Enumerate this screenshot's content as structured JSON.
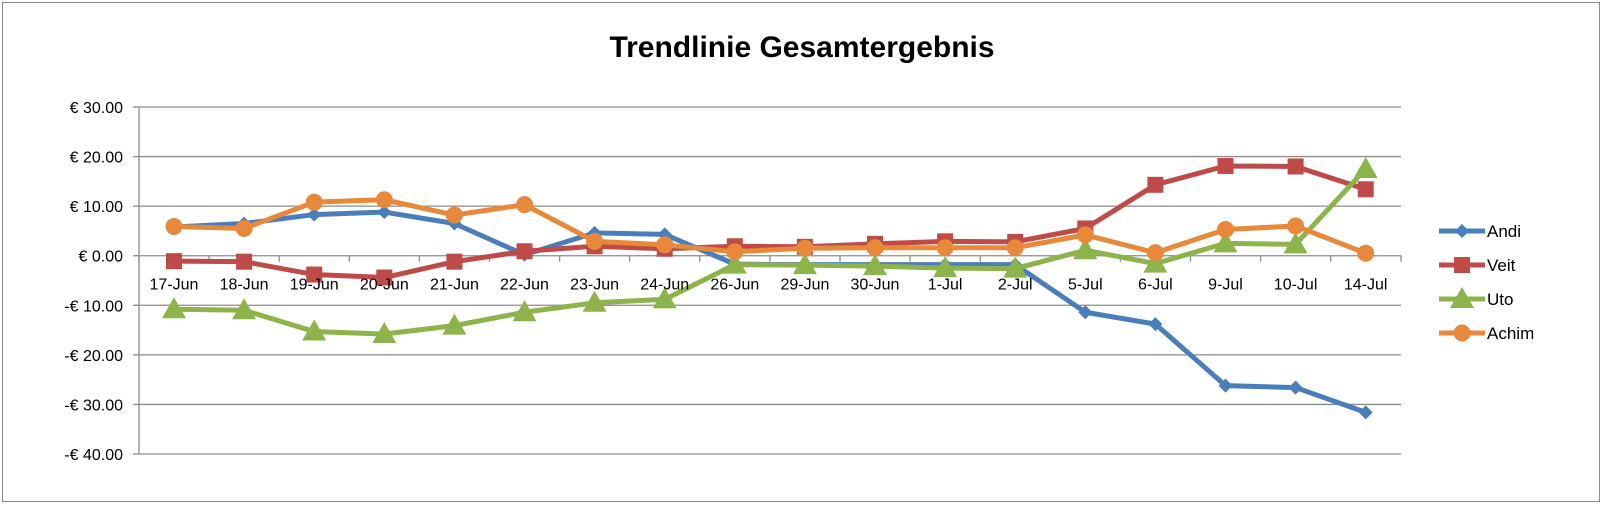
{
  "chart_data": {
    "type": "line",
    "title": "Trendlinie Gesamtergebnis",
    "xlabel": "",
    "ylabel": "",
    "ylim": [
      -40,
      30
    ],
    "y_ticks": [
      30,
      20,
      10,
      0,
      -10,
      -20,
      -30,
      -40
    ],
    "y_tick_labels": [
      "€ 30.00",
      "€ 20.00",
      "€ 10.00",
      "€ 0.00",
      "-€ 10.00",
      "-€ 20.00",
      "-€ 30.00",
      "-€ 40.00"
    ],
    "categories": [
      "17-Jun",
      "18-Jun",
      "19-Jun",
      "20-Jun",
      "21-Jun",
      "22-Jun",
      "23-Jun",
      "24-Jun",
      "26-Jun",
      "29-Jun",
      "30-Jun",
      "1-Jul",
      "2-Jul",
      "5-Jul",
      "6-Jul",
      "9-Jul",
      "10-Jul",
      "14-Jul"
    ],
    "grid": true,
    "legend_position": "right",
    "series": [
      {
        "name": "Andi",
        "color": "#4a7ebb",
        "marker": "diamond",
        "values": [
          5.8,
          6.5,
          8.3,
          8.8,
          6.5,
          0.2,
          4.6,
          4.3,
          -1.7,
          -1.8,
          -1.8,
          -1.8,
          -1.8,
          -11.4,
          -13.8,
          -26.2,
          -26.6,
          -31.6
        ]
      },
      {
        "name": "Veit",
        "color": "#be4b48",
        "marker": "square",
        "values": [
          -1.1,
          -1.2,
          -3.8,
          -4.4,
          -1.2,
          0.9,
          1.9,
          1.4,
          1.9,
          1.8,
          2.4,
          2.9,
          2.8,
          5.5,
          14.3,
          18.1,
          18.0,
          13.4
        ]
      },
      {
        "name": "Uto",
        "color": "#8cb44b",
        "marker": "triangle",
        "values": [
          -10.8,
          -11.0,
          -15.3,
          -15.8,
          -14.1,
          -11.4,
          -9.5,
          -8.8,
          -1.8,
          -1.9,
          -2.1,
          -2.5,
          -2.6,
          1.1,
          -1.6,
          2.5,
          2.3,
          17.5
        ]
      },
      {
        "name": "Achim",
        "color": "#e8883a",
        "marker": "circle",
        "values": [
          5.9,
          5.5,
          10.8,
          11.3,
          8.2,
          10.3,
          2.9,
          2.2,
          0.8,
          1.5,
          1.6,
          1.6,
          1.6,
          4.2,
          0.6,
          5.3,
          6.0,
          0.5
        ]
      }
    ]
  }
}
